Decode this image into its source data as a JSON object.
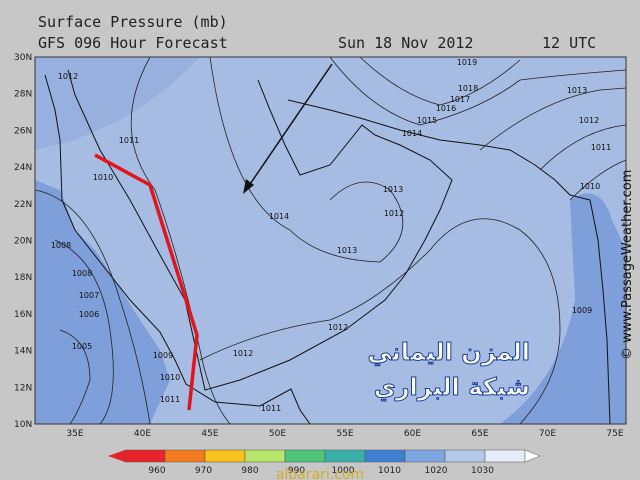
{
  "header": {
    "title": "Surface Pressure (mb)",
    "subtitle": "GFS 096 Hour Forecast",
    "date": "Sun 18 Nov 2012",
    "time": "12 UTC"
  },
  "map": {
    "lat_labels": [
      "30N",
      "28N",
      "26N",
      "24N",
      "22N",
      "20N",
      "18N",
      "16N",
      "14N",
      "12N",
      "10N"
    ],
    "lon_labels": [
      "35E",
      "40E",
      "45E",
      "50E",
      "55E",
      "60E",
      "65E",
      "70E",
      "75E"
    ],
    "isobar_labels": [
      "1012",
      "1011",
      "1010",
      "1008",
      "1008",
      "1007",
      "1006",
      "1005",
      "1009",
      "1010",
      "1011",
      "1011",
      "1012",
      "1012",
      "1013",
      "1014",
      "1012",
      "1013",
      "1014",
      "1015",
      "1016",
      "1017",
      "1018",
      "1019",
      "1013",
      "1012",
      "1011",
      "1010",
      "1009"
    ],
    "credit": "© www.PassageWeather.com",
    "overlay_text": [
      "المزن اليماني",
      "شبكة البراري"
    ]
  },
  "legend": {
    "labels": [
      "960",
      "970",
      "980",
      "990",
      "1000",
      "1010",
      "1020",
      "1030"
    ]
  },
  "watermark": "albarari.com"
}
